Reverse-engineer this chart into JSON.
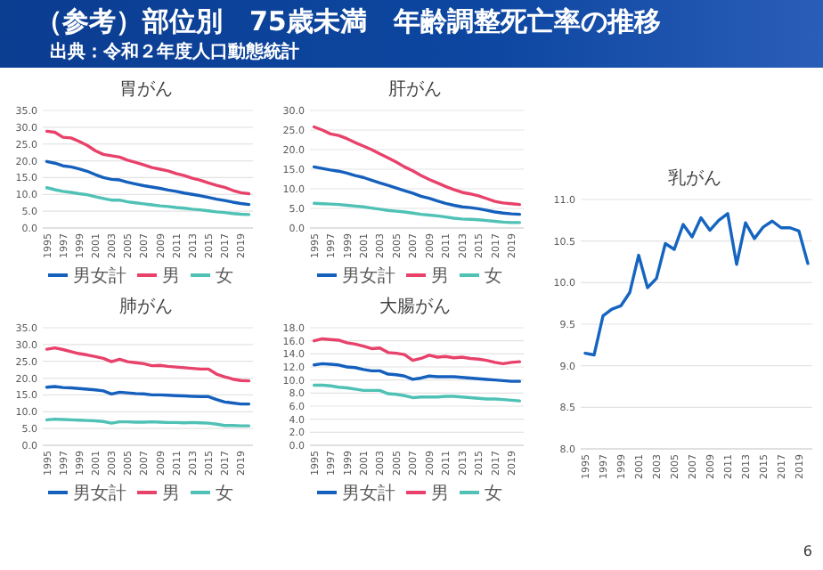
{
  "chart_data": [
    {
      "type": "other",
      "title": "（参考）部位別　75歳未満　年齢調整死亡率の推移",
      "annotations": [
        "出典：令和２年度人口動態統計",
        "6"
      ]
    },
    {
      "type": "line",
      "title": "胃がん",
      "categories": [
        "1995",
        null,
        "1997",
        null,
        "1999",
        null,
        "2001",
        null,
        "2003",
        null,
        "2005",
        null,
        "2007",
        null,
        "2009",
        null,
        "2011",
        null,
        "2013",
        null,
        "2015",
        null,
        "2017",
        null,
        "2019",
        null
      ],
      "ylim": [
        0,
        35
      ],
      "yticks": [
        {
          "value": 0,
          "label": "0.0"
        },
        {
          "value": 5,
          "label": "5.0"
        },
        {
          "value": 10,
          "label": "10.0"
        },
        {
          "value": 15,
          "label": "15.0"
        },
        {
          "value": 20,
          "label": "20.0"
        },
        {
          "value": 25,
          "label": "25.0"
        },
        {
          "value": 30,
          "label": "30.0"
        },
        {
          "value": 35,
          "label": "35.0"
        }
      ],
      "grid": "y",
      "legend": "bottom",
      "series": [
        {
          "name": "男女計",
          "color": "#1560bd",
          "values": [
            19.8,
            19.3,
            18.5,
            18.2,
            17.6,
            16.9,
            15.9,
            15.0,
            14.5,
            14.3,
            13.6,
            13.1,
            12.6,
            12.2,
            11.8,
            11.3,
            10.9,
            10.4,
            10.0,
            9.6,
            9.1,
            8.6,
            8.2,
            7.7,
            7.3,
            7.0
          ]
        },
        {
          "name": "男",
          "color": "#e8416a",
          "values": [
            28.8,
            28.5,
            27.0,
            26.8,
            25.8,
            24.6,
            23.0,
            21.9,
            21.5,
            21.1,
            20.2,
            19.5,
            18.8,
            18.0,
            17.5,
            17.0,
            16.2,
            15.6,
            14.8,
            14.2,
            13.4,
            12.7,
            12.1,
            11.2,
            10.5,
            10.2
          ]
        },
        {
          "name": "女",
          "color": "#4fc1b5",
          "values": [
            12.0,
            11.4,
            10.9,
            10.6,
            10.2,
            9.9,
            9.3,
            8.8,
            8.3,
            8.3,
            7.8,
            7.5,
            7.2,
            6.9,
            6.6,
            6.4,
            6.1,
            5.9,
            5.6,
            5.4,
            5.1,
            4.8,
            4.6,
            4.3,
            4.1,
            4.0
          ]
        }
      ]
    },
    {
      "type": "line",
      "title": "肝がん",
      "categories": [
        "1995",
        null,
        "1997",
        null,
        "1999",
        null,
        "2001",
        null,
        "2003",
        null,
        "2005",
        null,
        "2007",
        null,
        "2009",
        null,
        "2011",
        null,
        "2013",
        null,
        "2015",
        null,
        "2017",
        null,
        "2019",
        null
      ],
      "ylim": [
        0,
        30
      ],
      "yticks": [
        {
          "value": 0,
          "label": "0.0"
        },
        {
          "value": 5,
          "label": "5.0"
        },
        {
          "value": 10,
          "label": "10.0"
        },
        {
          "value": 15,
          "label": "15.0"
        },
        {
          "value": 20,
          "label": "20.0"
        },
        {
          "value": 25,
          "label": "25.0"
        },
        {
          "value": 30,
          "label": "30.0"
        }
      ],
      "grid": "y",
      "legend": "bottom",
      "series": [
        {
          "name": "男女計",
          "color": "#1560bd",
          "values": [
            15.6,
            15.2,
            14.8,
            14.5,
            14.0,
            13.4,
            12.9,
            12.2,
            11.5,
            10.9,
            10.2,
            9.5,
            8.9,
            8.1,
            7.6,
            6.9,
            6.3,
            5.8,
            5.4,
            5.2,
            4.9,
            4.5,
            4.1,
            3.8,
            3.6,
            3.5
          ]
        },
        {
          "name": "男",
          "color": "#e8416a",
          "values": [
            25.8,
            25.0,
            24.0,
            23.6,
            22.8,
            21.8,
            20.9,
            20.0,
            18.9,
            17.9,
            16.8,
            15.6,
            14.6,
            13.4,
            12.4,
            11.5,
            10.6,
            9.8,
            9.1,
            8.7,
            8.2,
            7.5,
            6.8,
            6.4,
            6.2,
            6.0
          ]
        },
        {
          "name": "女",
          "color": "#4fc1b5",
          "values": [
            6.3,
            6.2,
            6.1,
            6.0,
            5.8,
            5.6,
            5.4,
            5.1,
            4.8,
            4.5,
            4.3,
            4.1,
            3.8,
            3.5,
            3.3,
            3.1,
            2.8,
            2.5,
            2.3,
            2.2,
            2.1,
            1.9,
            1.7,
            1.5,
            1.4,
            1.4
          ]
        }
      ]
    },
    {
      "type": "line",
      "title": "乳がん",
      "categories": [
        "1995",
        null,
        "1997",
        null,
        "1999",
        null,
        "2001",
        null,
        "2003",
        null,
        "2005",
        null,
        "2007",
        null,
        "2009",
        null,
        "2011",
        null,
        "2013",
        null,
        "2015",
        null,
        "2017",
        null,
        "2019",
        null
      ],
      "ylim": [
        8,
        11
      ],
      "yticks": [
        {
          "value": 8,
          "label": "8.0"
        },
        {
          "value": 8.5,
          "label": "8.5"
        },
        {
          "value": 9,
          "label": "9.0"
        },
        {
          "value": 9.5,
          "label": "9.5"
        },
        {
          "value": 10,
          "label": "10.0"
        },
        {
          "value": 10.5,
          "label": "10.5"
        },
        {
          "value": 11,
          "label": "11.0"
        }
      ],
      "grid": "y",
      "series": [
        {
          "color": "#1565c0",
          "values": [
            9.15,
            9.13,
            9.6,
            9.68,
            9.72,
            9.88,
            10.33,
            9.94,
            10.05,
            10.47,
            10.4,
            10.7,
            10.55,
            10.78,
            10.63,
            10.75,
            10.83,
            10.22,
            10.72,
            10.53,
            10.67,
            10.74,
            10.66,
            10.66,
            10.62,
            10.23
          ]
        }
      ]
    },
    {
      "type": "line",
      "title": "肺がん",
      "categories": [
        "1995",
        null,
        "1997",
        null,
        "1999",
        null,
        "2001",
        null,
        "2003",
        null,
        "2005",
        null,
        "2007",
        null,
        "2009",
        null,
        "2011",
        null,
        "2013",
        null,
        "2015",
        null,
        "2017",
        null,
        "2019",
        null
      ],
      "ylim": [
        0,
        35
      ],
      "yticks": [
        {
          "value": 0,
          "label": "0.0"
        },
        {
          "value": 5,
          "label": "5.0"
        },
        {
          "value": 10,
          "label": "10.0"
        },
        {
          "value": 15,
          "label": "15.0"
        },
        {
          "value": 20,
          "label": "20.0"
        },
        {
          "value": 25,
          "label": "25.0"
        },
        {
          "value": 30,
          "label": "30.0"
        },
        {
          "value": 35,
          "label": "35.0"
        }
      ],
      "grid": "y",
      "legend": "bottom",
      "series": [
        {
          "name": "男女計",
          "color": "#1560bd",
          "values": [
            17.3,
            17.5,
            17.2,
            17.1,
            16.9,
            16.7,
            16.5,
            16.2,
            15.3,
            15.8,
            15.6,
            15.4,
            15.3,
            15.0,
            15.0,
            14.9,
            14.8,
            14.7,
            14.6,
            14.5,
            14.5,
            13.6,
            12.9,
            12.6,
            12.3,
            12.3
          ]
        },
        {
          "name": "男",
          "color": "#e8416a",
          "values": [
            28.6,
            29.0,
            28.5,
            27.9,
            27.3,
            26.9,
            26.4,
            25.9,
            24.9,
            25.6,
            24.9,
            24.6,
            24.3,
            23.7,
            23.8,
            23.5,
            23.3,
            23.1,
            22.9,
            22.7,
            22.7,
            21.2,
            20.4,
            19.7,
            19.3,
            19.2
          ]
        },
        {
          "name": "女",
          "color": "#4fc1b5",
          "values": [
            7.6,
            7.8,
            7.7,
            7.6,
            7.5,
            7.4,
            7.3,
            7.1,
            6.6,
            7.0,
            7.0,
            6.9,
            6.9,
            7.0,
            6.9,
            6.8,
            6.8,
            6.7,
            6.8,
            6.7,
            6.6,
            6.3,
            5.9,
            5.9,
            5.8,
            5.8
          ]
        }
      ]
    },
    {
      "type": "line",
      "title": "大腸がん",
      "categories": [
        "1995",
        null,
        "1997",
        null,
        "1999",
        null,
        "2001",
        null,
        "2003",
        null,
        "2005",
        null,
        "2007",
        null,
        "2009",
        null,
        "2011",
        null,
        "2013",
        null,
        "2015",
        null,
        "2017",
        null,
        "2019",
        null
      ],
      "ylim": [
        0,
        18
      ],
      "yticks": [
        {
          "value": 0,
          "label": "0.0"
        },
        {
          "value": 2,
          "label": "2.0"
        },
        {
          "value": 4,
          "label": "4.0"
        },
        {
          "value": 6,
          "label": "6.0"
        },
        {
          "value": 8,
          "label": "8.0"
        },
        {
          "value": 10,
          "label": "10.0"
        },
        {
          "value": 12,
          "label": "12.0"
        },
        {
          "value": 14,
          "label": "14.0"
        },
        {
          "value": 16,
          "label": "16.0"
        },
        {
          "value": 18,
          "label": "18.0"
        }
      ],
      "grid": "y",
      "legend": "bottom",
      "series": [
        {
          "name": "男女計",
          "color": "#1560bd",
          "values": [
            12.3,
            12.5,
            12.4,
            12.3,
            12.0,
            11.9,
            11.6,
            11.4,
            11.4,
            10.9,
            10.8,
            10.6,
            10.1,
            10.3,
            10.6,
            10.5,
            10.5,
            10.5,
            10.4,
            10.3,
            10.2,
            10.1,
            10.0,
            9.9,
            9.8,
            9.8
          ]
        },
        {
          "name": "男",
          "color": "#e8416a",
          "values": [
            16.0,
            16.3,
            16.2,
            16.1,
            15.7,
            15.5,
            15.2,
            14.8,
            14.9,
            14.2,
            14.1,
            13.9,
            13.0,
            13.3,
            13.8,
            13.5,
            13.6,
            13.4,
            13.5,
            13.3,
            13.2,
            13.0,
            12.7,
            12.5,
            12.7,
            12.8
          ]
        },
        {
          "name": "女",
          "color": "#4fc1b5",
          "values": [
            9.2,
            9.2,
            9.1,
            8.9,
            8.8,
            8.6,
            8.4,
            8.4,
            8.4,
            7.9,
            7.8,
            7.6,
            7.3,
            7.4,
            7.4,
            7.4,
            7.5,
            7.5,
            7.4,
            7.3,
            7.2,
            7.1,
            7.1,
            7.0,
            6.9,
            6.8
          ]
        }
      ]
    }
  ]
}
